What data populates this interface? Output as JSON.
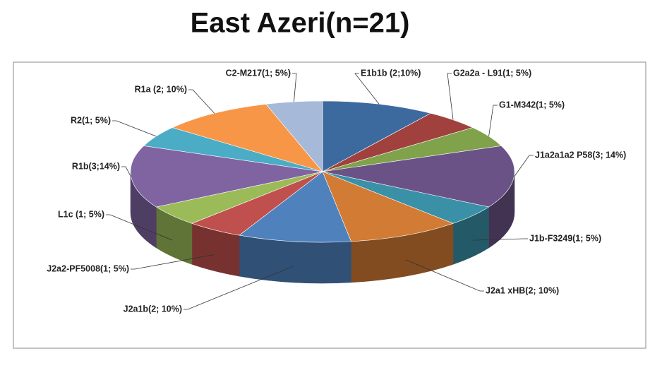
{
  "chart_data": {
    "type": "pie3d",
    "title": "East Azeri(n=21)",
    "categories": [
      "E1b1b (2;10%)",
      "G2a2a - L91(1; 5%)",
      "G1-M342(1; 5%)",
      "J1a2a1a2 P58(3; 14%)",
      "J1b-F3249(1; 5%)",
      "J2a1 xHB(2; 10%)",
      "J2a1b(2; 10%)",
      "J2a2-PF5008(1; 5%)",
      "L1c (1; 5%)",
      "R1b(3;14%)",
      "R2(1; 5%)",
      "R1a (2; 10%)",
      "C2-M217(1; 5%)"
    ],
    "values": [
      2,
      1,
      1,
      3,
      1,
      2,
      2,
      1,
      1,
      3,
      1,
      2,
      1
    ],
    "colors": [
      "#3d6a9e",
      "#a0413e",
      "#7fa24a",
      "#6b5286",
      "#3a90a7",
      "#d27b34",
      "#4f81bd",
      "#c0504d",
      "#9bbb59",
      "#8064a2",
      "#4bacc6",
      "#f79646",
      "#a7b9d9"
    ]
  }
}
